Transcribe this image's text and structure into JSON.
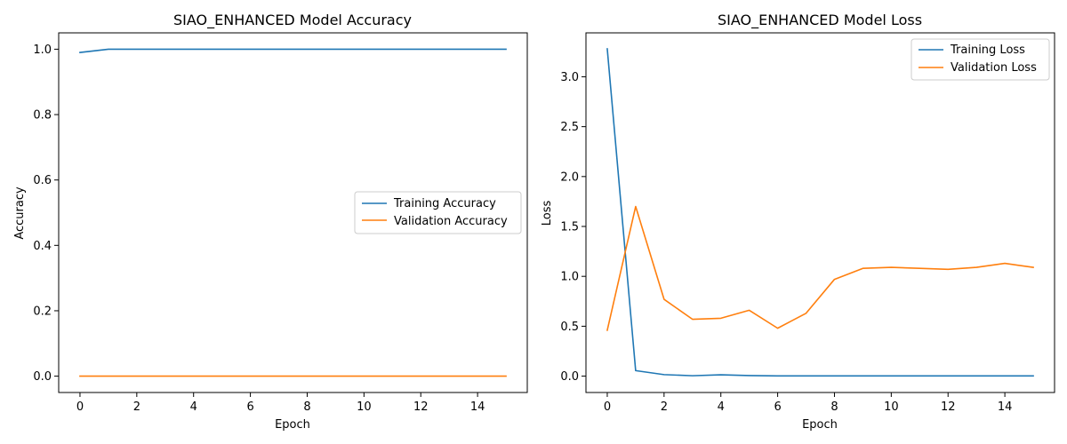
{
  "colors": {
    "training": "#1f77b4",
    "validation": "#ff7f0e"
  },
  "chart_data": [
    {
      "type": "line",
      "title": "SIAO_ENHANCED Model Accuracy",
      "xlabel": "Epoch",
      "ylabel": "Accuracy",
      "xlim": [
        -0.75,
        15.75
      ],
      "ylim": [
        -0.05,
        1.05
      ],
      "xticks": [
        0,
        2,
        4,
        6,
        8,
        10,
        12,
        14
      ],
      "yticks": [
        0.0,
        0.2,
        0.4,
        0.6,
        0.8,
        1.0
      ],
      "ytick_labels": [
        "0.0",
        "0.2",
        "0.4",
        "0.6",
        "0.8",
        "1.0"
      ],
      "legend_position": "center-right",
      "x": [
        0,
        1,
        2,
        3,
        4,
        5,
        6,
        7,
        8,
        9,
        10,
        11,
        12,
        13,
        14,
        15
      ],
      "series": [
        {
          "name": "Training Accuracy",
          "color": "#1f77b4",
          "values": [
            0.99,
            1.0,
            1.0,
            1.0,
            1.0,
            1.0,
            1.0,
            1.0,
            1.0,
            1.0,
            1.0,
            1.0,
            1.0,
            1.0,
            1.0,
            1.0
          ]
        },
        {
          "name": "Validation Accuracy",
          "color": "#ff7f0e",
          "values": [
            0.0,
            0.0,
            0.0,
            0.0,
            0.0,
            0.0,
            0.0,
            0.0,
            0.0,
            0.0,
            0.0,
            0.0,
            0.0,
            0.0,
            0.0,
            0.0
          ]
        }
      ]
    },
    {
      "type": "line",
      "title": "SIAO_ENHANCED Model Loss",
      "xlabel": "Epoch",
      "ylabel": "Loss",
      "xlim": [
        -0.75,
        15.75
      ],
      "ylim": [
        -0.164,
        3.44
      ],
      "xticks": [
        0,
        2,
        4,
        6,
        8,
        10,
        12,
        14
      ],
      "yticks": [
        0.0,
        0.5,
        1.0,
        1.5,
        2.0,
        2.5,
        3.0
      ],
      "ytick_labels": [
        "0.0",
        "0.5",
        "1.0",
        "1.5",
        "2.0",
        "2.5",
        "3.0"
      ],
      "legend_position": "top-right",
      "x": [
        0,
        1,
        2,
        3,
        4,
        5,
        6,
        7,
        8,
        9,
        10,
        11,
        12,
        13,
        14,
        15
      ],
      "series": [
        {
          "name": "Training Loss",
          "color": "#1f77b4",
          "values": [
            3.28,
            0.055,
            0.015,
            0.004,
            0.013,
            0.006,
            0.002,
            0.002,
            0.002,
            0.002,
            0.002,
            0.002,
            0.002,
            0.002,
            0.002,
            0.002
          ]
        },
        {
          "name": "Validation Loss",
          "color": "#ff7f0e",
          "values": [
            0.46,
            1.7,
            0.77,
            0.57,
            0.58,
            0.66,
            0.48,
            0.63,
            0.97,
            1.08,
            1.09,
            1.08,
            1.07,
            1.09,
            1.13,
            1.09
          ]
        }
      ]
    }
  ]
}
